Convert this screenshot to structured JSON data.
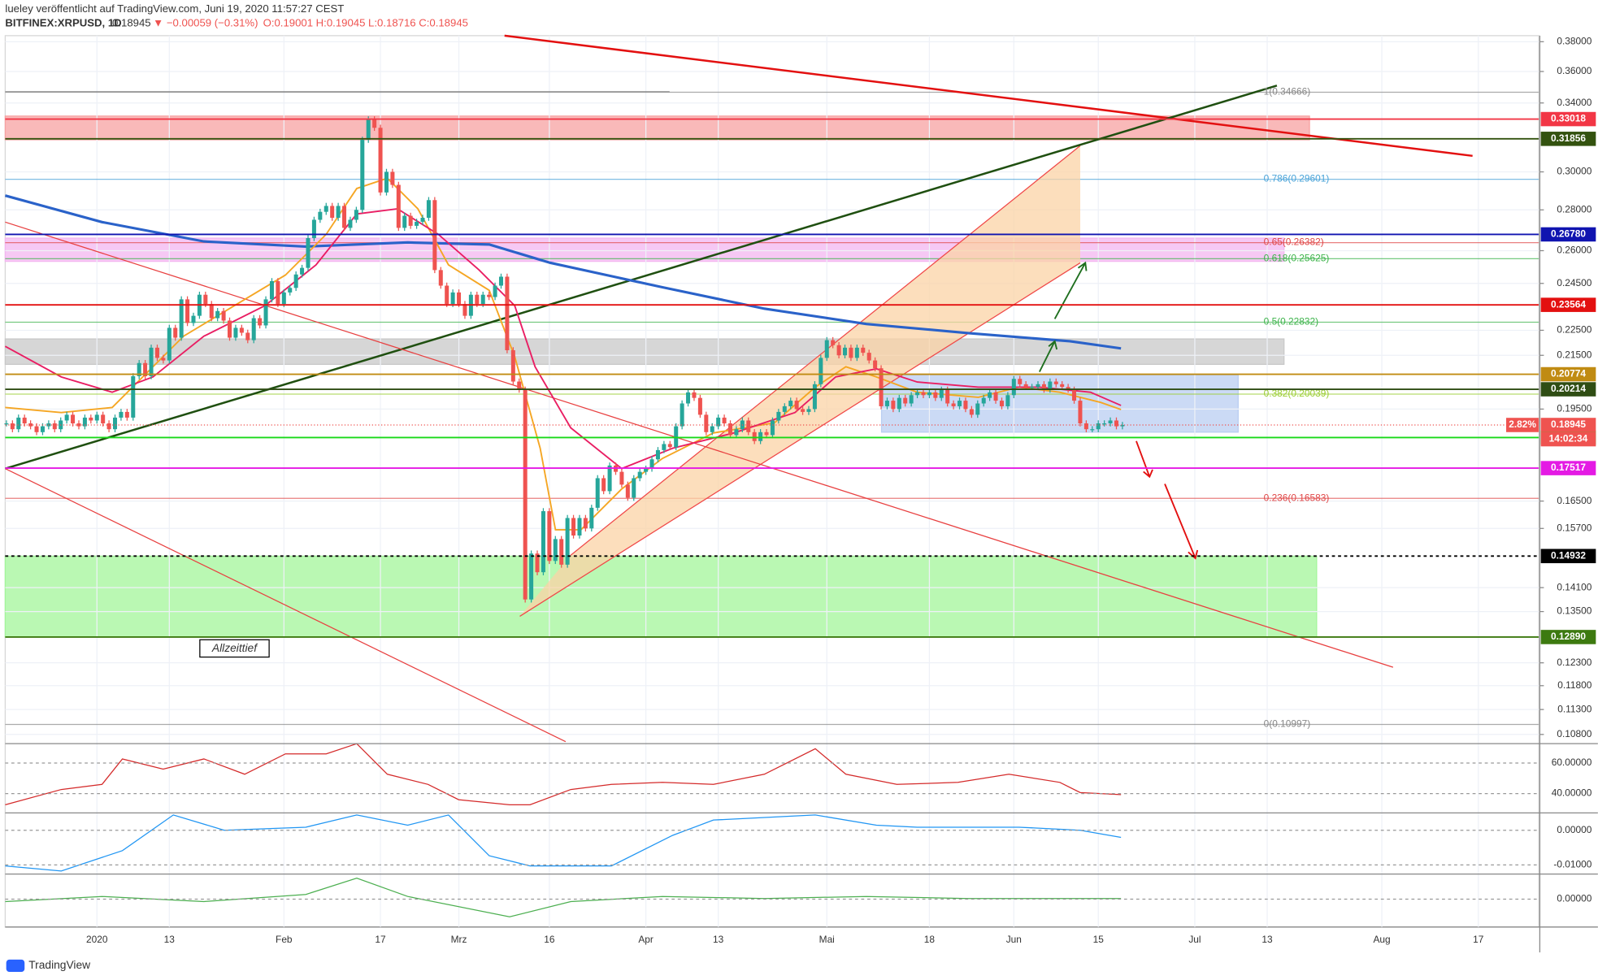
{
  "header": {
    "publisher": "lueley veröffentlicht auf TradingView.com, Juni 19, 2020 11:57:27 CEST",
    "symbol": "BITFINEX:XRPUSD, 1D",
    "last": 0.18945,
    "change": "▼ −0.00059 (−0.31%)",
    "ohlc": "O:0.19001 H:0.19045 L:0.18716 C:0.18945"
  },
  "footer": {
    "brand": "TradingView"
  },
  "chart_data": {
    "type": "candlestick",
    "log_scale": true,
    "grid": true,
    "up_color": "#26a69a",
    "down_color": "#ef5350",
    "values": [
      0.19,
      0.188,
      0.192,
      0.19,
      0.189,
      0.187,
      0.189,
      0.19,
      0.188,
      0.191,
      0.193,
      0.19,
      0.189,
      0.192,
      0.191,
      0.193,
      0.19,
      0.188,
      0.192,
      0.194,
      0.192,
      0.207,
      0.212,
      0.207,
      0.218,
      0.214,
      0.213,
      0.226,
      0.222,
      0.238,
      0.228,
      0.231,
      0.24,
      0.236,
      0.23,
      0.233,
      0.229,
      0.222,
      0.226,
      0.224,
      0.221,
      0.23,
      0.227,
      0.238,
      0.246,
      0.236,
      0.241,
      0.243,
      0.249,
      0.252,
      0.266,
      0.275,
      0.279,
      0.282,
      0.276,
      0.282,
      0.271,
      0.275,
      0.28,
      0.318,
      0.33,
      0.325,
      0.289,
      0.3,
      0.293,
      0.271,
      0.277,
      0.272,
      0.274,
      0.276,
      0.285,
      0.251,
      0.244,
      0.236,
      0.241,
      0.236,
      0.231,
      0.24,
      0.236,
      0.24,
      0.239,
      0.244,
      0.248,
      0.217,
      0.205,
      0.202,
      0.138,
      0.15,
      0.145,
      0.162,
      0.148,
      0.154,
      0.147,
      0.16,
      0.155,
      0.16,
      0.157,
      0.163,
      0.172,
      0.168,
      0.176,
      0.174,
      0.17,
      0.166,
      0.172,
      0.174,
      0.175,
      0.178,
      0.181,
      0.183,
      0.182,
      0.189,
      0.197,
      0.201,
      0.199,
      0.193,
      0.187,
      0.189,
      0.192,
      0.19,
      0.186,
      0.188,
      0.191,
      0.187,
      0.184,
      0.187,
      0.186,
      0.191,
      0.194,
      0.196,
      0.198,
      0.195,
      0.194,
      0.195,
      0.204,
      0.214,
      0.221,
      0.219,
      0.215,
      0.218,
      0.214,
      0.218,
      0.216,
      0.213,
      0.21,
      0.196,
      0.198,
      0.195,
      0.199,
      0.197,
      0.2,
      0.201,
      0.2,
      0.201,
      0.199,
      0.202,
      0.197,
      0.196,
      0.198,
      0.195,
      0.193,
      0.197,
      0.199,
      0.201,
      0.198,
      0.196,
      0.2,
      0.206,
      0.204,
      0.203,
      0.203,
      0.204,
      0.202,
      0.205,
      0.204,
      0.203,
      0.202,
      0.198,
      0.19,
      0.188,
      0.188,
      0.19,
      0.19,
      0.191,
      0.189,
      0.18945
    ],
    "xticks": [
      "2020",
      "13",
      "Feb",
      "17",
      "Mrz",
      "16",
      "Apr",
      "13",
      "Mai",
      "18",
      "Jun",
      "15",
      "Jul",
      "13",
      "Aug",
      "17"
    ],
    "ylim": [
      0.1066,
      0.3842
    ],
    "yticks": [
      {
        "value": 0.38,
        "label": "0.38000"
      },
      {
        "value": 0.36,
        "label": "0.36000"
      },
      {
        "value": 0.34,
        "label": "0.34000"
      },
      {
        "value": 0.3,
        "label": "0.30000"
      },
      {
        "value": 0.28,
        "label": "0.28000"
      },
      {
        "value": 0.26,
        "label": "0.26000"
      },
      {
        "value": 0.245,
        "label": "0.24500"
      },
      {
        "value": 0.225,
        "label": "0.22500"
      },
      {
        "value": 0.215,
        "label": "0.21500"
      },
      {
        "value": 0.195,
        "label": "0.19500"
      },
      {
        "value": 0.165,
        "label": "0.16500"
      },
      {
        "value": 0.157,
        "label": "0.15700"
      },
      {
        "value": 0.141,
        "label": "0.14100"
      },
      {
        "value": 0.135,
        "label": "0.13500"
      },
      {
        "value": 0.123,
        "label": "0.12300"
      },
      {
        "value": 0.118,
        "label": "0.11800"
      },
      {
        "value": 0.113,
        "label": "0.11300"
      },
      {
        "value": 0.108,
        "label": "0.10800"
      }
    ],
    "zones": [
      {
        "from": 0.318,
        "to": 0.332,
        "color": "#f7a1a1"
      },
      {
        "from": 0.255,
        "to": 0.266,
        "color": "#f3b6f0"
      },
      {
        "from": 0.2115,
        "to": 0.2215,
        "color": "#c8c8c8"
      },
      {
        "from": 0.187,
        "to": 0.2075,
        "color": "#b9cdf2"
      },
      {
        "from": 0.1289,
        "to": 0.1493,
        "color": "#a3f59a"
      }
    ],
    "levels": [
      {
        "value": 0.33018,
        "color": "#f23645"
      },
      {
        "value": 0.31856,
        "color": "#33520f"
      },
      {
        "value": 0.2678,
        "label": "0.26780",
        "color": "#1014b0"
      },
      {
        "value": 0.23564,
        "color": "#e31010"
      },
      {
        "value": 0.20774,
        "color": "#c08b12"
      },
      {
        "value": 0.20214,
        "color": "#2f4d14"
      },
      {
        "value": 0.18517,
        "color": "#18d818"
      },
      {
        "value": 0.17517,
        "color": "#e41ae4"
      },
      {
        "value": 0.14932,
        "color": "#000000"
      },
      {
        "value": 0.1289,
        "label": "0.12890",
        "color": "#3d7a10"
      }
    ],
    "current": {
      "value": 0.18945,
      "change": "2.82%",
      "countdown": "14:02:34",
      "color": "#ef5350"
    },
    "fibs": [
      {
        "value": 0.34666,
        "label": "1(0.34666)",
        "color": "#888888"
      },
      {
        "value": 0.29601,
        "label": "0.786(0.29601)",
        "color": "#4aa3d8"
      },
      {
        "value": 0.26382,
        "label": "0.65(0.26382)",
        "color": "#e04848"
      },
      {
        "value": 0.25625,
        "label": "0.618(0.25625)",
        "color": "#3cb34a"
      },
      {
        "value": 0.22832,
        "label": "0.5(0.22832)",
        "color": "#3cb34a"
      },
      {
        "value": 0.20039,
        "label": "0.382(0.20039)",
        "color": "#9acd32"
      },
      {
        "value": 0.16583,
        "label": "0.236(0.16583)",
        "color": "#e04848"
      },
      {
        "value": 0.10997,
        "label": "0(0.10997)",
        "color": "#888888"
      }
    ],
    "annotation": "Allzeittief",
    "panes": [
      {
        "ylim": [
          28,
          72.7
        ],
        "yticks": [
          {
            "value": 60,
            "label": "60.00000"
          },
          {
            "value": 40,
            "label": "40.00000"
          }
        ]
      },
      {
        "ylim": [
          -0.01235,
          0.005
        ],
        "yticks": [
          {
            "value": 0,
            "label": "0.00000"
          },
          {
            "value": -0.01,
            "label": "-0.01000"
          }
        ]
      },
      {
        "ylim": [
          -0.005,
          0.0045
        ],
        "yticks": [
          {
            "value": 0,
            "label": "0.00000"
          }
        ]
      }
    ]
  }
}
